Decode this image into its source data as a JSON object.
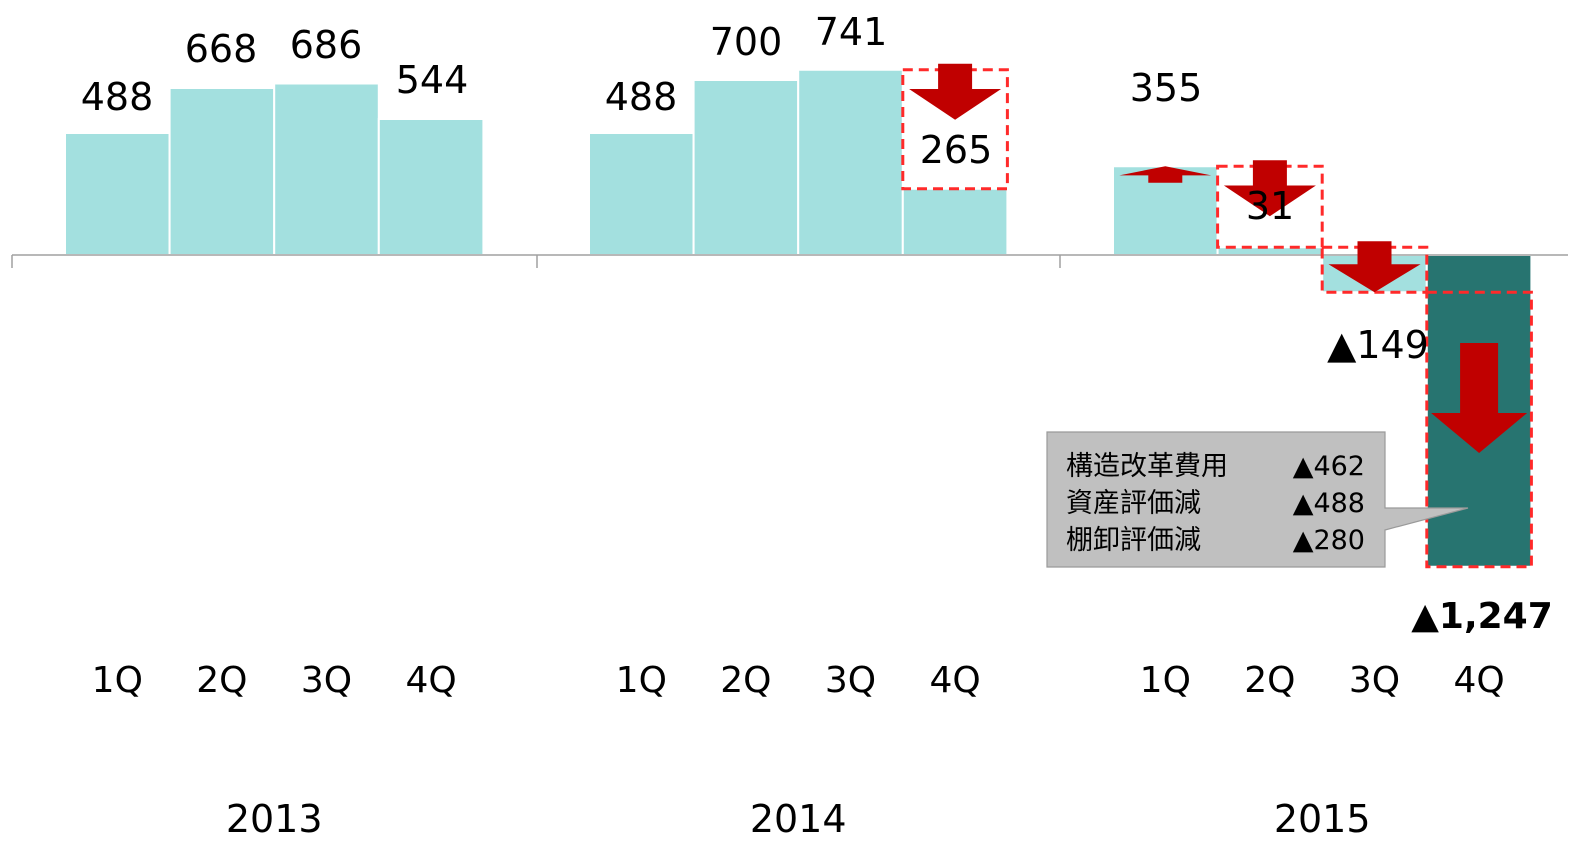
{
  "chart_data": {
    "type": "bar",
    "groups": [
      "2013",
      "2014",
      "2015"
    ],
    "quarter_labels": [
      "1Q",
      "2Q",
      "3Q",
      "4Q"
    ],
    "values": [
      [
        488,
        668,
        686,
        544
      ],
      [
        488,
        700,
        741,
        265
      ],
      [
        355,
        31,
        -149,
        -1247
      ]
    ],
    "value_labels": [
      [
        "488",
        "668",
        "686",
        "544"
      ],
      [
        "488",
        "700",
        "741",
        "265"
      ],
      [
        "355",
        "31",
        "▲149",
        "▲1,247"
      ]
    ],
    "ylim": [
      -1247,
      741
    ],
    "colors": {
      "bar": "#a3e0df",
      "bar_highlight": "#277470",
      "decline_arrow": "#c00000",
      "decline_box": "#ff2a2a",
      "axis": "#a0a0a0",
      "callout_fill": "#c0c0c0"
    },
    "declines": [
      {
        "group": 1,
        "quarter": 3
      },
      {
        "group": 2,
        "quarter": 0
      },
      {
        "group": 2,
        "quarter": 1
      },
      {
        "group": 2,
        "quarter": 2
      },
      {
        "group": 2,
        "quarter": 3
      }
    ],
    "callout": {
      "rows": [
        {
          "label": "構造改革費用",
          "value": "▲462"
        },
        {
          "label": "資産評価減",
          "value": "▲488"
        },
        {
          "label": "棚卸評価減",
          "value": "▲280"
        }
      ]
    }
  }
}
